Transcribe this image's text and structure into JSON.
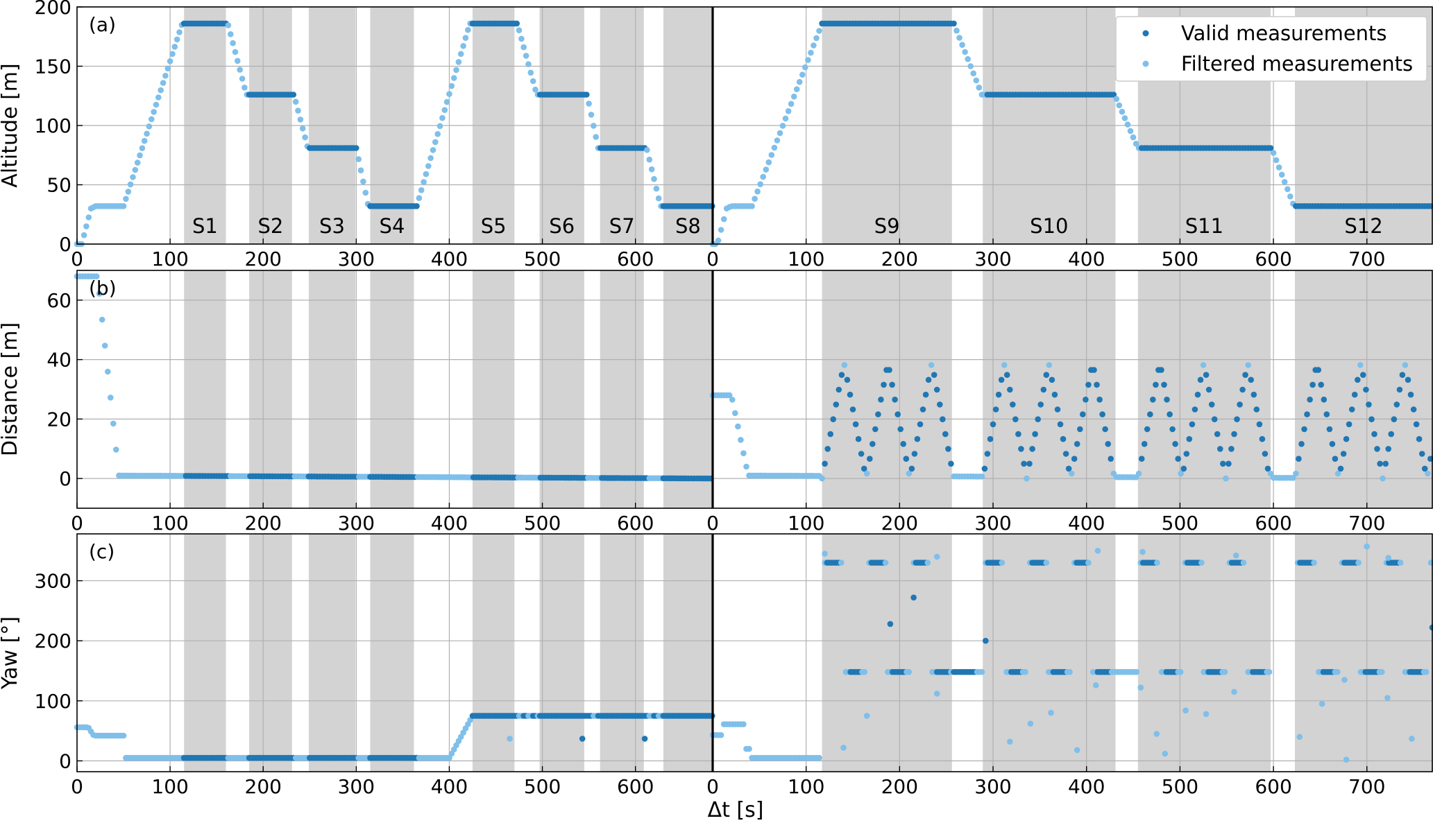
{
  "figure": {
    "xlabel": "Δt [s]",
    "legend": {
      "valid_label": "Valid measurements",
      "filtered_label": "Filtered measurements"
    }
  },
  "colors": {
    "valid": "#1f77b4",
    "filtered": "#7fbfea",
    "shade": "#d3d3d3",
    "grid": "#b0b0b0"
  },
  "chart_data": [
    {
      "type": "scatter",
      "panel_label": "(a)",
      "ylabel": "Altitude [m]",
      "ylim": [
        0,
        200
      ],
      "yticks": [
        0,
        50,
        100,
        150,
        200
      ],
      "left": {
        "xlim": [
          0,
          683
        ],
        "xticks": [
          0,
          100,
          200,
          300,
          400,
          500,
          600
        ]
      },
      "right": {
        "xlim": [
          0,
          770
        ],
        "xticks": [
          0,
          100,
          200,
          300,
          400,
          500,
          600,
          700
        ]
      },
      "series": [
        {
          "name": "Valid measurements"
        },
        {
          "name": "Filtered measurements"
        }
      ],
      "segments_left": [
        {
          "label": "S1",
          "x": [
            115,
            160
          ]
        },
        {
          "label": "S2",
          "x": [
            185,
            231
          ]
        },
        {
          "label": "S3",
          "x": [
            249,
            299
          ]
        },
        {
          "label": "S4",
          "x": [
            315,
            362
          ]
        },
        {
          "label": "S5",
          "x": [
            425,
            470
          ]
        },
        {
          "label": "S6",
          "x": [
            497,
            545
          ]
        },
        {
          "label": "S7",
          "x": [
            562,
            609
          ]
        },
        {
          "label": "S8",
          "x": [
            630,
            683
          ]
        }
      ],
      "segments_right": [
        {
          "label": "S9",
          "x": [
            117,
            256
          ]
        },
        {
          "label": "S10",
          "x": [
            289,
            431
          ]
        },
        {
          "label": "S11",
          "x": [
            455,
            597
          ]
        },
        {
          "label": "S12",
          "x": [
            623,
            770
          ]
        }
      ],
      "left_profile": [
        [
          0,
          0
        ],
        [
          5,
          0
        ],
        [
          15,
          30
        ],
        [
          20,
          32
        ],
        [
          50,
          32
        ],
        [
          113,
          186
        ],
        [
          162,
          186
        ],
        [
          182,
          126
        ],
        [
          233,
          126
        ],
        [
          248,
          81
        ],
        [
          300,
          81
        ],
        [
          313,
          32
        ],
        [
          365,
          32
        ],
        [
          422,
          186
        ],
        [
          473,
          186
        ],
        [
          494,
          126
        ],
        [
          548,
          126
        ],
        [
          560,
          81
        ],
        [
          612,
          81
        ],
        [
          627,
          32
        ],
        [
          683,
          32
        ]
      ],
      "left_valid": [
        [
          115,
          162
        ],
        [
          185,
          233
        ],
        [
          249,
          300
        ],
        [
          315,
          365
        ],
        [
          425,
          473
        ],
        [
          497,
          548
        ],
        [
          562,
          612
        ],
        [
          630,
          683
        ]
      ],
      "right_profile": [
        [
          0,
          0
        ],
        [
          5,
          0
        ],
        [
          15,
          30
        ],
        [
          20,
          32
        ],
        [
          42,
          32
        ],
        [
          117,
          186
        ],
        [
          258,
          186
        ],
        [
          288,
          126
        ],
        [
          430,
          126
        ],
        [
          455,
          81
        ],
        [
          598,
          81
        ],
        [
          622,
          32
        ],
        [
          770,
          32
        ]
      ],
      "right_valid": [
        [
          117,
          258
        ],
        [
          292,
          430
        ],
        [
          458,
          598
        ],
        [
          623,
          770
        ]
      ]
    },
    {
      "type": "scatter",
      "panel_label": "(b)",
      "ylabel": "Distance [m]",
      "ylim": [
        -10,
        70
      ],
      "yticks": [
        0,
        20,
        40,
        60
      ],
      "left_profile": [
        [
          0,
          68
        ],
        [
          22,
          68
        ],
        [
          45,
          1
        ],
        [
          683,
          0
        ]
      ],
      "right_profile": [
        [
          0,
          28
        ],
        [
          20,
          28
        ],
        [
          38,
          1
        ],
        [
          770,
          0
        ]
      ],
      "right_waves": {
        "period": 47,
        "amplitude": 39,
        "windows": [
          [
            117,
            256
          ],
          [
            289,
            431
          ],
          [
            455,
            597
          ],
          [
            623,
            770
          ]
        ]
      }
    },
    {
      "type": "scatter",
      "panel_label": "(c)",
      "ylabel": "Yaw [°]",
      "ylim": [
        -18,
        378
      ],
      "yticks": [
        0,
        100,
        200,
        300
      ],
      "left_profile": [
        [
          0,
          56
        ],
        [
          12,
          56
        ],
        [
          18,
          42
        ],
        [
          50,
          42
        ],
        [
          51,
          5
        ],
        [
          400,
          5
        ],
        [
          425,
          75
        ],
        [
          683,
          75
        ]
      ],
      "left_outliers": [
        [
          465,
          37
        ],
        [
          543,
          37
        ],
        [
          610,
          37
        ]
      ],
      "right_levels": {
        "high": 330,
        "low": 148
      },
      "right_outliers": [
        [
          120,
          345
        ],
        [
          140,
          22
        ],
        [
          165,
          75
        ],
        [
          190,
          228
        ],
        [
          215,
          272
        ],
        [
          240,
          112
        ],
        [
          240,
          340
        ],
        [
          292,
          200
        ],
        [
          318,
          32
        ],
        [
          340,
          62
        ],
        [
          362,
          80
        ],
        [
          390,
          18
        ],
        [
          410,
          126
        ],
        [
          412,
          350
        ],
        [
          458,
          122
        ],
        [
          460,
          348
        ],
        [
          475,
          45
        ],
        [
          484,
          12
        ],
        [
          506,
          84
        ],
        [
          528,
          78
        ],
        [
          558,
          115
        ],
        [
          560,
          342
        ],
        [
          628,
          40
        ],
        [
          652,
          95
        ],
        [
          676,
          135
        ],
        [
          678,
          2
        ],
        [
          700,
          357
        ],
        [
          722,
          105
        ],
        [
          723,
          338
        ],
        [
          748,
          37
        ],
        [
          770,
          222
        ]
      ]
    }
  ]
}
